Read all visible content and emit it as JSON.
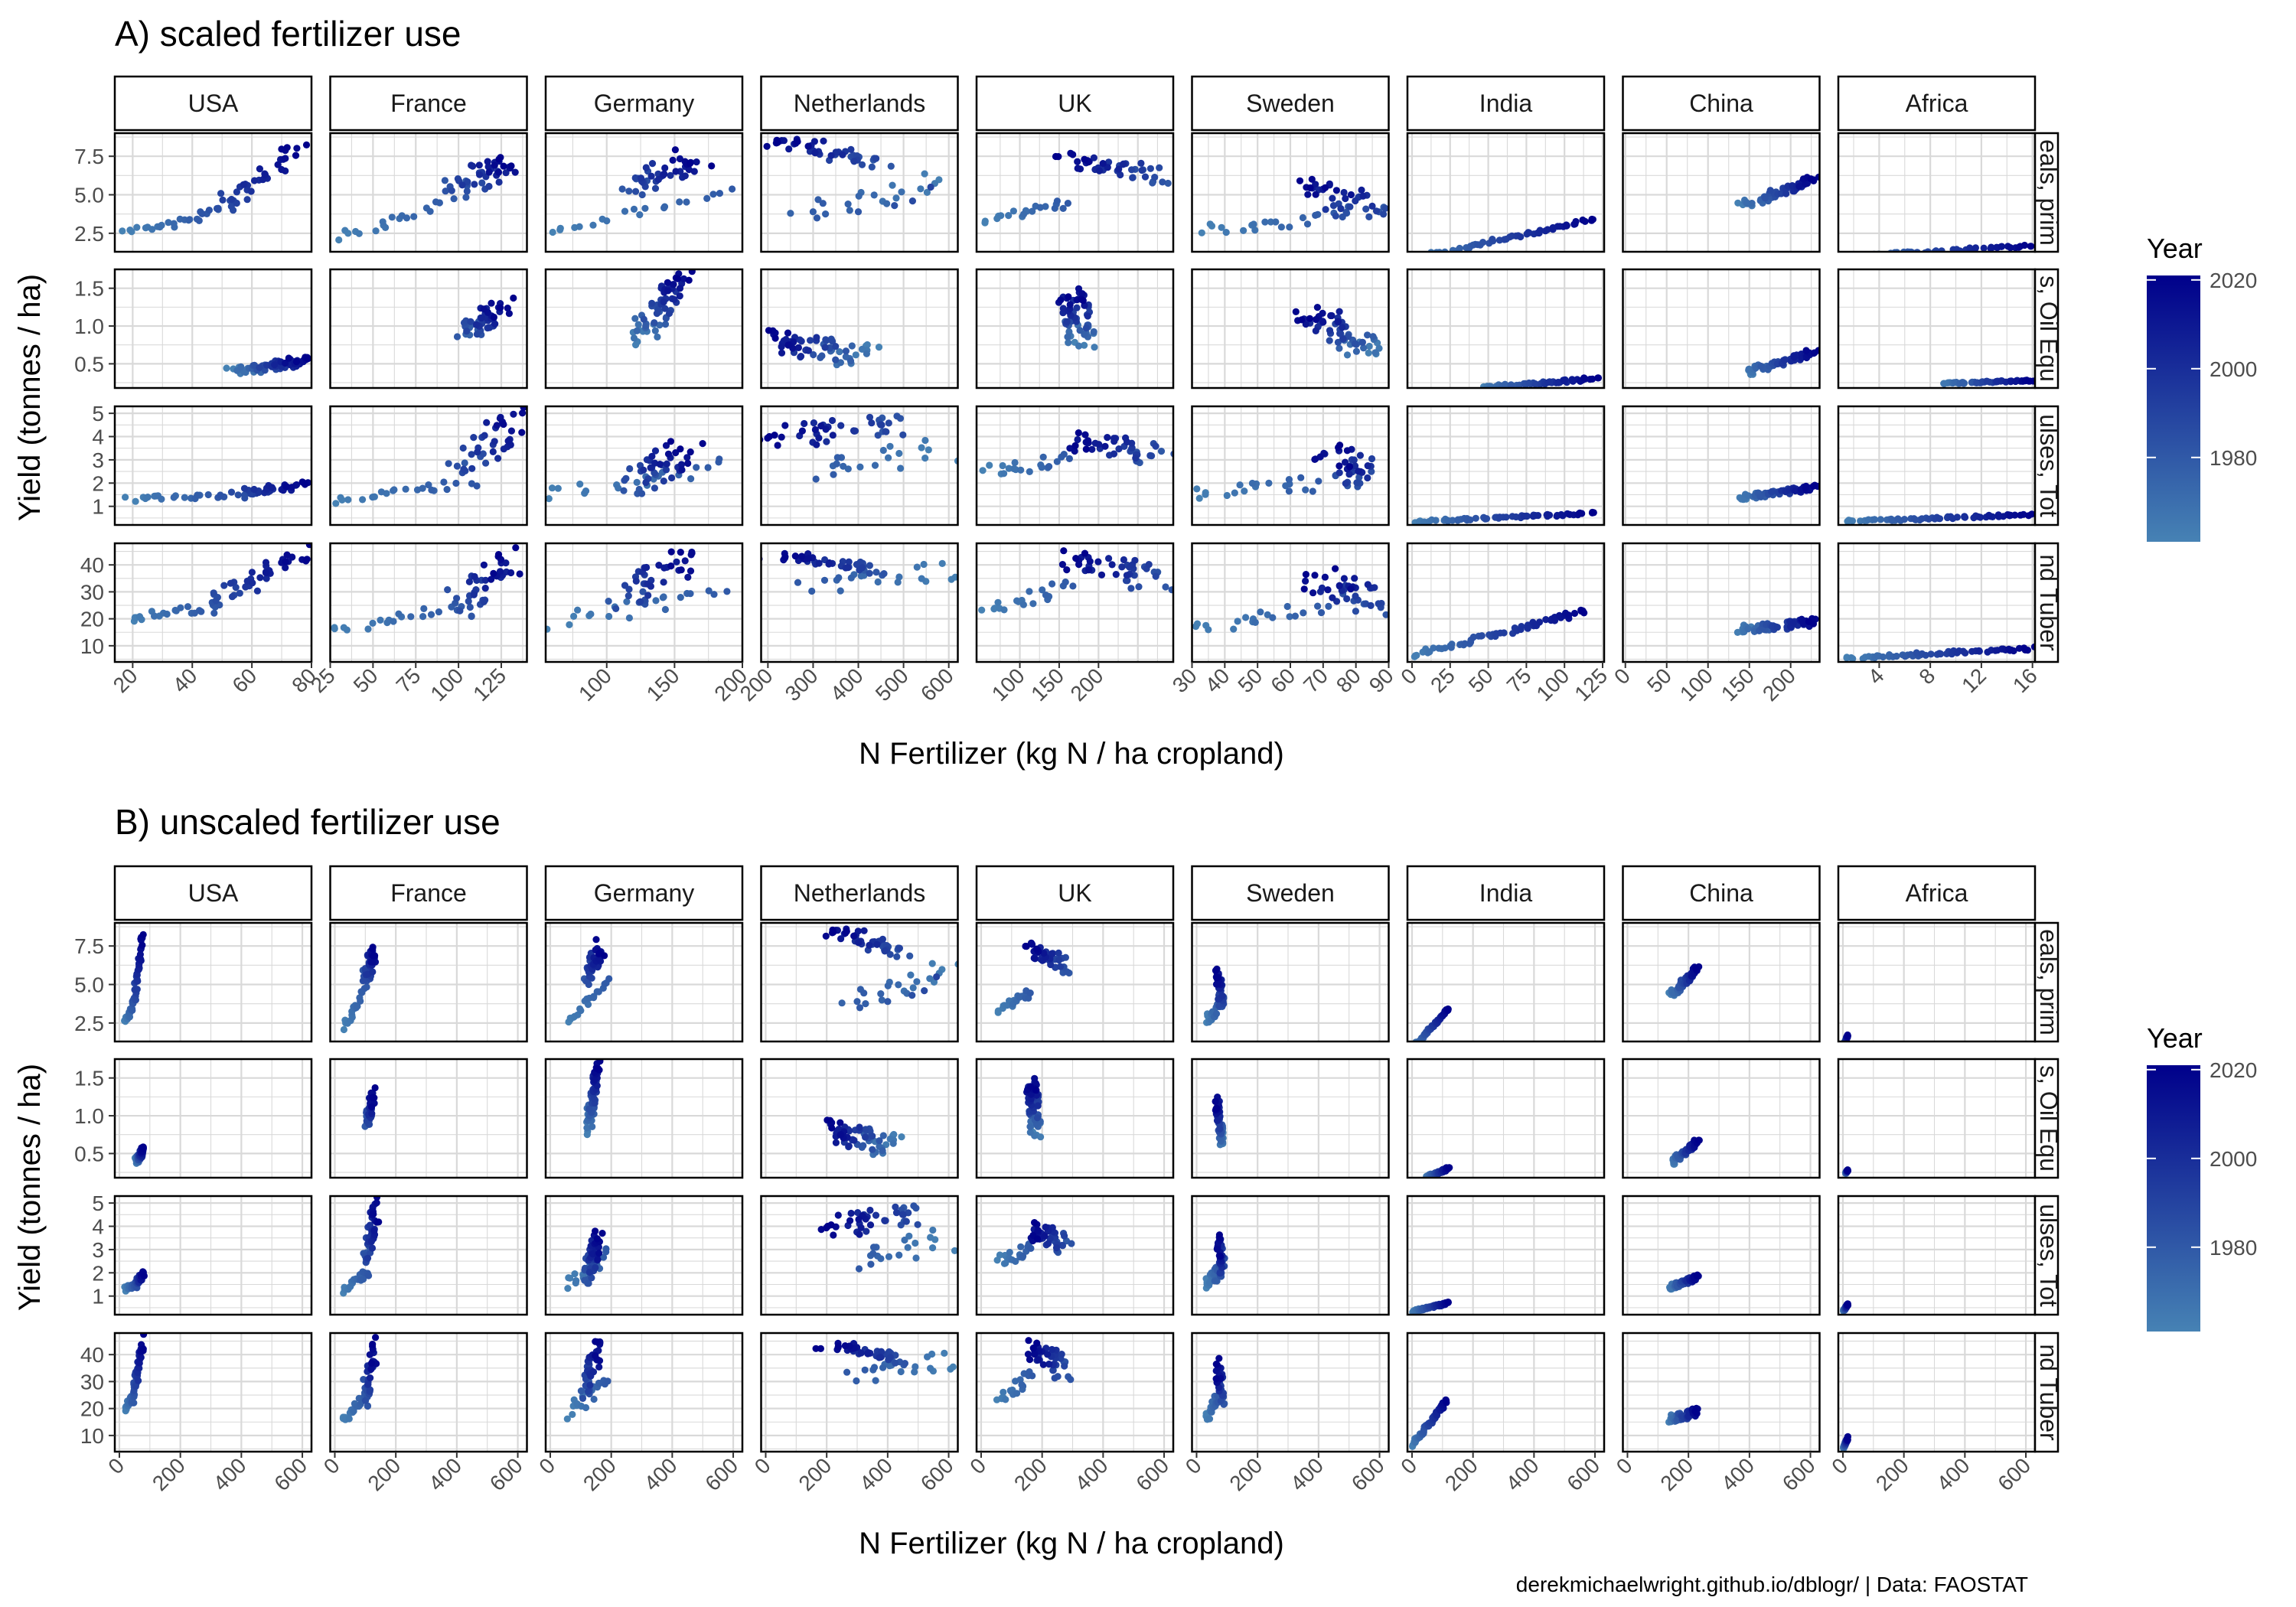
{
  "caption": "derekmichaelwright.github.io/dblogr/ | Data: FAOSTAT",
  "colors": {
    "year_low": "#4682B4",
    "year_high": "#00008B",
    "grid": "#d9d9d9",
    "border": "#000000",
    "axis_text": "#4d4d4d"
  },
  "chart_data": [
    {
      "type": "scatter",
      "title": "A) scaled fertilizer use",
      "xlabel": "N Fertilizer (kg N / ha cropland)",
      "ylabel": "Yield (tonnes / ha)",
      "x_scale": "free",
      "legend": {
        "title": "Year",
        "ticks": [
          1980,
          2000,
          2020
        ],
        "range": [
          1961,
          2021
        ],
        "placement": "right"
      },
      "col_facets": [
        "USA",
        "France",
        "Germany",
        "Netherlands",
        "UK",
        "Sweden",
        "India",
        "China",
        "Africa"
      ],
      "row_facet_labels": [
        "eals, prim",
        "s, Oil Equ",
        "ulses, Tot",
        "nd Tuber"
      ],
      "row_y": [
        {
          "ylim": [
            1.3,
            9.0
          ],
          "ticks": [
            2.5,
            5.0,
            7.5
          ],
          "tick_labels": [
            "2.5",
            "5.0",
            "7.5"
          ]
        },
        {
          "ylim": [
            0.18,
            1.75
          ],
          "ticks": [
            0.5,
            1.0,
            1.5
          ],
          "tick_labels": [
            "0.5",
            "1.0",
            "1.5"
          ]
        },
        {
          "ylim": [
            0.2,
            5.3
          ],
          "ticks": [
            1,
            2,
            3,
            4,
            5
          ],
          "tick_labels": [
            "1",
            "2",
            "3",
            "4",
            "5"
          ]
        },
        {
          "ylim": [
            4,
            48
          ],
          "ticks": [
            10,
            20,
            30,
            40
          ],
          "tick_labels": [
            "10",
            "20",
            "30",
            "40"
          ]
        }
      ],
      "col_x": [
        {
          "xlim": [
            14,
            80
          ],
          "ticks": [
            20,
            40,
            60,
            80
          ],
          "tick_labels": [
            "20",
            "40",
            "60",
            "80"
          ]
        },
        {
          "xlim": [
            25,
            140
          ],
          "ticks": [
            25,
            50,
            75,
            100,
            125
          ],
          "tick_labels": [
            "25",
            "50",
            "75",
            "100",
            "125"
          ]
        },
        {
          "xlim": [
            55,
            200
          ],
          "ticks": [
            100,
            150,
            200
          ],
          "tick_labels": [
            "100",
            "150",
            "200"
          ]
        },
        {
          "xlim": [
            185,
            620
          ],
          "ticks": [
            200,
            300,
            400,
            500,
            600
          ],
          "tick_labels": [
            "200",
            "300",
            "400",
            "500",
            "600"
          ]
        },
        {
          "xlim": [
            45,
            295
          ],
          "ticks": [
            100,
            150,
            200
          ],
          "tick_labels": [
            "100",
            "150",
            "200"
          ]
        },
        {
          "xlim": [
            30,
            90
          ],
          "ticks": [
            30,
            40,
            50,
            60,
            70,
            80,
            90
          ],
          "tick_labels": [
            "30",
            "40",
            "50",
            "60",
            "70",
            "80",
            "90"
          ]
        },
        {
          "xlim": [
            -3,
            126
          ],
          "ticks": [
            0,
            25,
            50,
            75,
            100,
            125
          ],
          "tick_labels": [
            "0",
            "25",
            "50",
            "75",
            "100",
            "125"
          ]
        },
        {
          "xlim": [
            -3,
            235
          ],
          "ticks": [
            0,
            50,
            100,
            150,
            200
          ],
          "tick_labels": [
            "0",
            "50",
            "100",
            "150",
            "200"
          ]
        },
        {
          "xlim": [
            0.8,
            16.2
          ],
          "ticks": [
            4,
            8,
            12,
            16
          ],
          "tick_labels": [
            "4",
            "8",
            "12",
            "16"
          ]
        }
      ],
      "trends": {
        "USA": [
          [
            18,
            2.45,
            0.45,
            1.3,
            20,
            55,
            0.4,
            1.4,
            45,
            75,
            0.55,
            1.95,
            40,
            80,
            0.6,
            46,
            75,
            6.1
          ]
        ],
        "France": [
          [
            28,
            2.2,
            105,
            1.2,
            28,
            1.1,
            16,
            28,
            105,
            125
          ]
        ],
        "Germany": [
          [
            60,
            2.3,
            130,
            1.3,
            60,
            1.6,
            18
          ]
        ],
        "Netherlands": [
          [
            210,
            8.5,
            270,
            0.85,
            210,
            4.2,
            44
          ]
        ],
        "UK": [
          [
            60,
            3.3,
            160,
            1.25,
            60,
            2.8,
            22
          ]
        ],
        "Sweden": [
          [
            32,
            2.7,
            65,
            1.0,
            32,
            1.2,
            17
          ]
        ],
        "India": [
          [
            0,
            0.9,
            45,
            0.18,
            0,
            0.3,
            7
          ]
        ],
        "China": [
          [
            140,
            4.3,
            145,
            0.38,
            140,
            1.4,
            16
          ]
        ],
        "Africa": [
          [
            1.5,
            1.0,
            9,
            0.24,
            1.5,
            0.35,
            5.5
          ]
        ]
      }
    },
    {
      "type": "scatter",
      "title": "B) unscaled fertilizer use",
      "xlabel": "N Fertilizer (kg N / ha cropland)",
      "ylabel": "Yield (tonnes / ha)",
      "x_scale": "fixed",
      "legend": {
        "title": "Year",
        "ticks": [
          1980,
          2000,
          2020
        ],
        "range": [
          1961,
          2021
        ],
        "placement": "right"
      },
      "col_facets": [
        "USA",
        "France",
        "Germany",
        "Netherlands",
        "UK",
        "Sweden",
        "India",
        "China",
        "Africa"
      ],
      "row_facet_labels": [
        "eals, prim",
        "s, Oil Equ",
        "ulses, Tot",
        "nd Tuber"
      ],
      "x_all": {
        "xlim": [
          -15,
          630
        ],
        "ticks": [
          0,
          200,
          400,
          600
        ],
        "tick_labels": [
          "0",
          "200",
          "400",
          "600"
        ]
      }
    }
  ]
}
